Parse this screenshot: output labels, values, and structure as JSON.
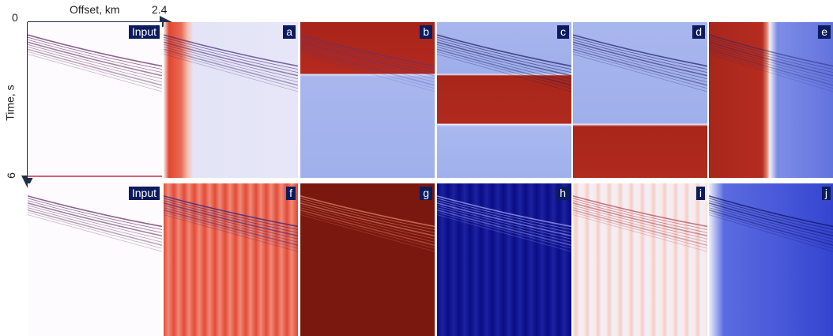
{
  "axes": {
    "x_label": "Offset, km",
    "x_end": "2.4",
    "y_start": "0",
    "y_end": "6",
    "y_label": "Time, s"
  },
  "panels": [
    {
      "label": "Input"
    },
    {
      "label": "a"
    },
    {
      "label": "b"
    },
    {
      "label": "c"
    },
    {
      "label": "d"
    },
    {
      "label": "e"
    },
    {
      "label": "Input"
    },
    {
      "label": "f"
    },
    {
      "label": "g"
    },
    {
      "label": "h"
    },
    {
      "label": "i"
    },
    {
      "label": "j"
    }
  ]
}
